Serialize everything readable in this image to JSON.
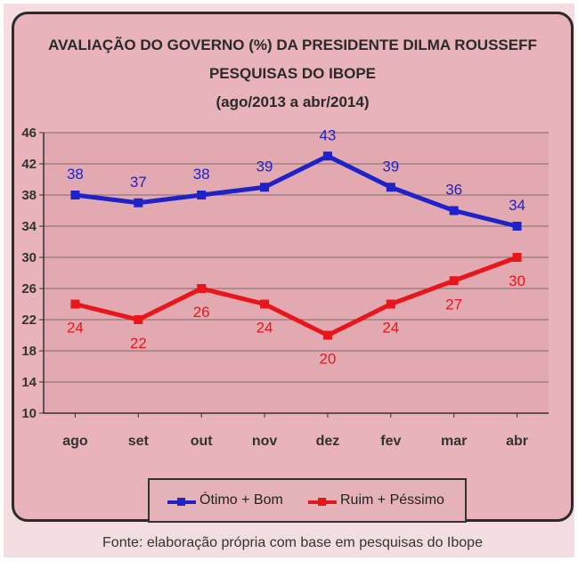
{
  "chart_data": {
    "type": "line",
    "title": "AVALIAÇÃO DO GOVERNO (%) DA PRESIDENTE DILMA ROUSSEFF",
    "subtitle_lines": [
      "PESQUISAS DO IBOPE",
      "(ago/2013 a abr/2014)"
    ],
    "categories": [
      "ago",
      "set",
      "out",
      "nov",
      "dez",
      "fev",
      "mar",
      "abr"
    ],
    "ylim": [
      10,
      46
    ],
    "yticks": [
      10,
      14,
      18,
      22,
      26,
      30,
      34,
      38,
      42,
      46
    ],
    "grid": true,
    "legend_position": "bottom",
    "series": [
      {
        "name": "Ótimo + Bom",
        "color": "#1f22c8",
        "values": [
          38,
          37,
          38,
          39,
          43,
          39,
          36,
          34
        ],
        "label_position": "above"
      },
      {
        "name": "Ruim + Péssimo",
        "color": "#e8161b",
        "values": [
          24,
          22,
          26,
          24,
          20,
          24,
          27,
          30
        ],
        "label_position": "below"
      }
    ]
  },
  "footer": {
    "source": "Fonte: elaboração própria com base em pesquisas do Ibope"
  }
}
